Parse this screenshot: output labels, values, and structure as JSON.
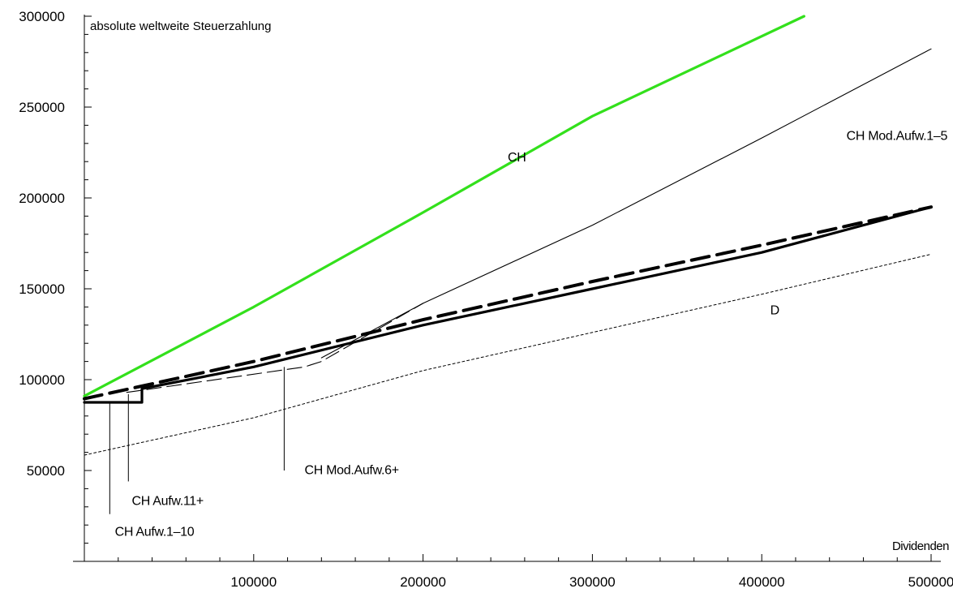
{
  "chart_data": {
    "type": "line",
    "title": "",
    "ylabel": "absolute weltweite Steuerzahlung",
    "xlabel": "Dividenden",
    "xlim": [
      0,
      500000
    ],
    "ylim": [
      0,
      300000
    ],
    "grid": false,
    "legend": "none",
    "x_ticks": [
      {
        "value": 100000,
        "label": "100000"
      },
      {
        "value": 200000,
        "label": "200000"
      },
      {
        "value": 300000,
        "label": "300000"
      },
      {
        "value": 400000,
        "label": "400000"
      },
      {
        "value": 500000,
        "label": "500000"
      }
    ],
    "y_ticks": [
      {
        "value": 50000,
        "label": "50000"
      },
      {
        "value": 100000,
        "label": "100000"
      },
      {
        "value": 150000,
        "label": "150000"
      },
      {
        "value": 200000,
        "label": "200000"
      },
      {
        "value": 250000,
        "label": "250000"
      },
      {
        "value": 300000,
        "label": "300000"
      }
    ],
    "series": [
      {
        "name": "CH",
        "color": "#33e01c",
        "style": "solid-thick",
        "points": [
          [
            0,
            91000
          ],
          [
            100000,
            140000
          ],
          [
            200000,
            192000
          ],
          [
            300000,
            245000
          ],
          [
            425000,
            300000
          ]
        ]
      },
      {
        "name": "CH Mod.Aufw.1–5",
        "color": "#000000",
        "style": "solid-thin",
        "points": [
          [
            140000,
            112000
          ],
          [
            200000,
            142000
          ],
          [
            300000,
            185000
          ],
          [
            400000,
            233000
          ],
          [
            500000,
            282000
          ]
        ]
      },
      {
        "name": "CH Aufw.1–10",
        "color": "#000000",
        "style": "solid-thick",
        "points": [
          [
            0,
            87500
          ],
          [
            34000,
            87500
          ],
          [
            34000,
            95000
          ],
          [
            100000,
            107000
          ],
          [
            200000,
            130000
          ],
          [
            300000,
            150000
          ],
          [
            400000,
            170000
          ],
          [
            500000,
            195000
          ]
        ]
      },
      {
        "name": "CH Aufw.11+",
        "color": "#000000",
        "style": "dashed-thick",
        "points": [
          [
            0,
            89500
          ],
          [
            100000,
            110000
          ],
          [
            200000,
            133000
          ],
          [
            300000,
            154000
          ],
          [
            400000,
            174000
          ],
          [
            500000,
            195000
          ]
        ]
      },
      {
        "name": "CH Mod.Aufw.6+",
        "color": "#000000",
        "style": "dashed-thin",
        "points": [
          [
            25000,
            93000
          ],
          [
            130000,
            107000
          ],
          [
            140000,
            110000
          ],
          [
            200000,
            142000
          ]
        ]
      },
      {
        "name": "D",
        "color": "#000000",
        "style": "dotted-thin",
        "points": [
          [
            0,
            58500
          ],
          [
            100000,
            79000
          ],
          [
            200000,
            105000
          ],
          [
            300000,
            126000
          ],
          [
            400000,
            147000
          ],
          [
            500000,
            169000
          ]
        ]
      }
    ],
    "annotations": [
      {
        "text": "CH",
        "x": 250000,
        "y": 220000
      },
      {
        "text": "CH Mod.Aufw.1–5",
        "x": 450000,
        "y": 232000
      },
      {
        "text": "D",
        "x": 405000,
        "y": 136000
      },
      {
        "text": "CH Mod.Aufw.6+",
        "x": 130000,
        "y": 48000,
        "pointer_x": 118000,
        "pointer_y0": 107000,
        "pointer_y1": 50000
      },
      {
        "text": "CH Aufw.11+",
        "x": 28000,
        "y": 31000,
        "pointer_x": 26000,
        "pointer_y0": 92000,
        "pointer_y1": 44000
      },
      {
        "text": "CH Aufw.1–10",
        "x": 18000,
        "y": 14000,
        "pointer_x": 15000,
        "pointer_y0": 88000,
        "pointer_y1": 26000
      }
    ]
  }
}
